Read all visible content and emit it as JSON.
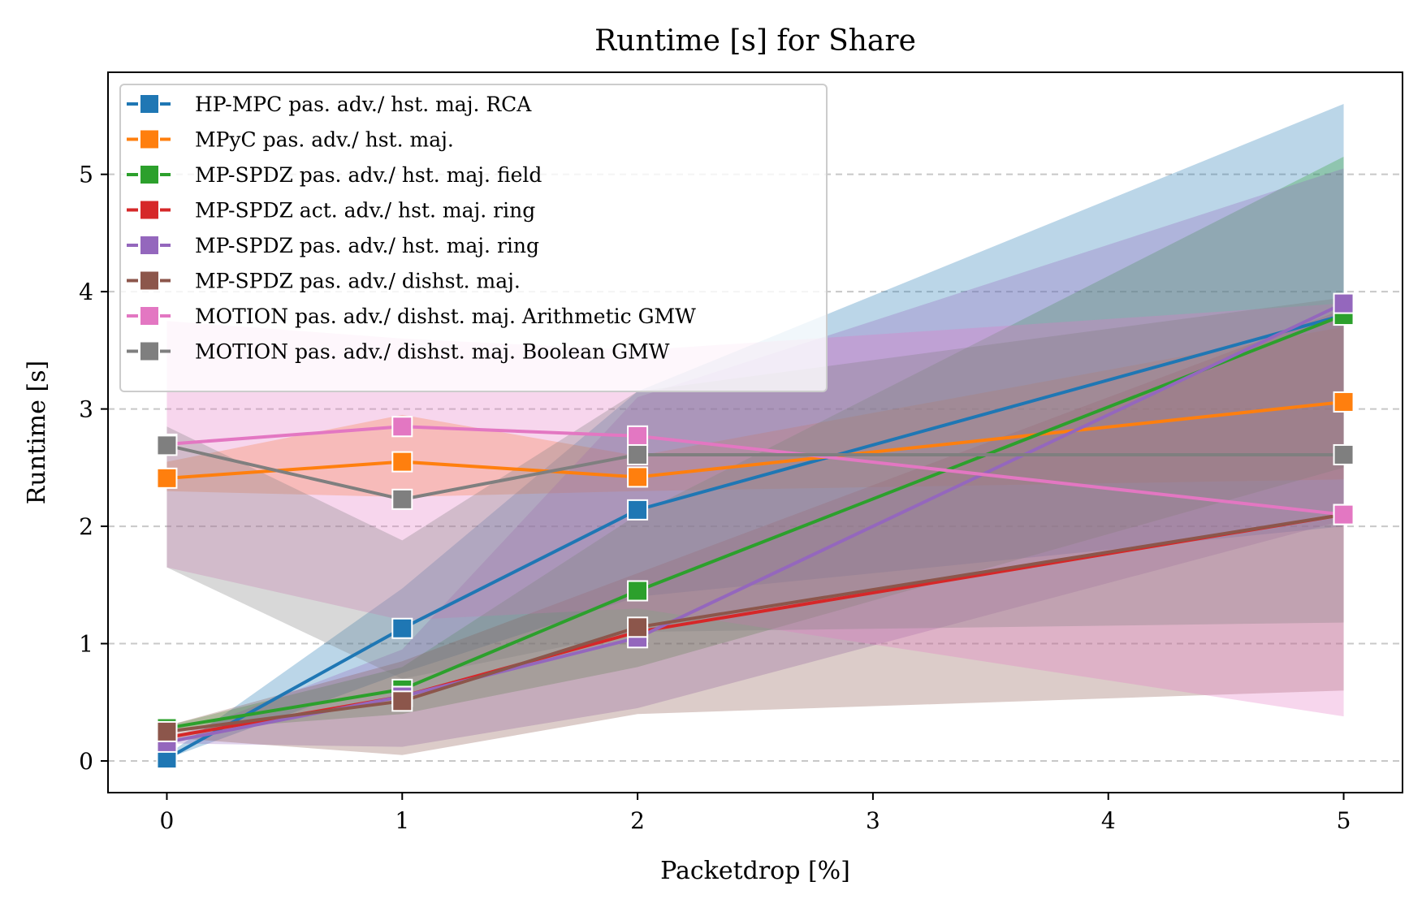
{
  "chart_data": {
    "type": "line",
    "title": "Runtime [s] for Share",
    "xlabel": "Packetdrop [%]",
    "ylabel": "Runtime [s]",
    "x": [
      0,
      1,
      2,
      5
    ],
    "xticks": [
      "0",
      "1",
      "2",
      "3",
      "4",
      "5"
    ],
    "yticks": [
      "0",
      "1",
      "2",
      "3",
      "4",
      "5"
    ],
    "xlim": [
      -0.25,
      5.25
    ],
    "ylim": [
      -0.27,
      5.87
    ],
    "grid": "y-dashed",
    "legend_position": "upper-left",
    "series": [
      {
        "name": "HP-MPC pas. adv./ hst. maj. RCA",
        "color": "#1f77b4",
        "values": [
          0.02,
          1.13,
          2.14,
          3.8
        ],
        "lower": [
          0.02,
          0.75,
          1.4,
          2.0
        ],
        "upper": [
          0.05,
          1.47,
          3.15,
          5.6
        ],
        "band_opacity": 0.3
      },
      {
        "name": "MPyC pas. adv./ hst. maj.",
        "color": "#ff7f0e",
        "values": [
          2.41,
          2.55,
          2.42,
          3.06
        ],
        "lower": [
          2.3,
          2.25,
          2.3,
          2.4
        ],
        "upper": [
          2.55,
          2.95,
          2.6,
          3.7
        ],
        "band_opacity": 0.3
      },
      {
        "name": "MP-SPDZ pas. adv./ hst. maj. field",
        "color": "#2ca02c",
        "values": [
          0.28,
          0.61,
          1.45,
          3.8
        ],
        "lower": [
          0.25,
          0.4,
          0.8,
          2.5
        ],
        "upper": [
          0.3,
          0.8,
          2.1,
          5.15
        ],
        "band_opacity": 0.3
      },
      {
        "name": "MP-SPDZ act. adv./ hst. maj. ring",
        "color": "#d62728",
        "values": [
          0.2,
          0.55,
          1.1,
          2.1
        ],
        "lower": [
          0.18,
          0.45,
          1.0,
          1.9
        ],
        "upper": [
          0.22,
          0.65,
          1.2,
          2.3
        ],
        "band_opacity": 0.0
      },
      {
        "name": "MP-SPDZ pas. adv./ hst. maj. ring",
        "color": "#9467bd",
        "values": [
          0.16,
          0.55,
          1.05,
          3.9
        ],
        "lower": [
          0.15,
          0.12,
          0.45,
          2.05
        ],
        "upper": [
          0.18,
          0.95,
          3.1,
          5.05
        ],
        "band_opacity": 0.3
      },
      {
        "name": "MP-SPDZ pas. adv./ dishst. maj.",
        "color": "#8c564b",
        "values": [
          0.25,
          0.51,
          1.14,
          2.1
        ],
        "lower": [
          0.2,
          0.05,
          0.4,
          0.6
        ],
        "upper": [
          0.3,
          0.85,
          1.6,
          3.85
        ],
        "band_opacity": 0.3
      },
      {
        "name": "MOTION pas. adv./ dishst. maj. Arithmetic GMW",
        "color": "#e377c2",
        "values": [
          2.7,
          2.85,
          2.77,
          2.1
        ],
        "lower": [
          1.65,
          1.2,
          1.3,
          0.38
        ],
        "upper": [
          3.75,
          3.6,
          3.5,
          3.9
        ],
        "band_opacity": 0.3
      },
      {
        "name": "MOTION pas. adv./ dishst. maj. Boolean GMW",
        "color": "#7f7f7f",
        "values": [
          2.69,
          2.23,
          2.61,
          2.61
        ],
        "lower": [
          1.65,
          0.7,
          1.1,
          1.18
        ],
        "upper": [
          2.85,
          1.88,
          3.15,
          3.95
        ],
        "band_opacity": 0.3
      }
    ]
  }
}
